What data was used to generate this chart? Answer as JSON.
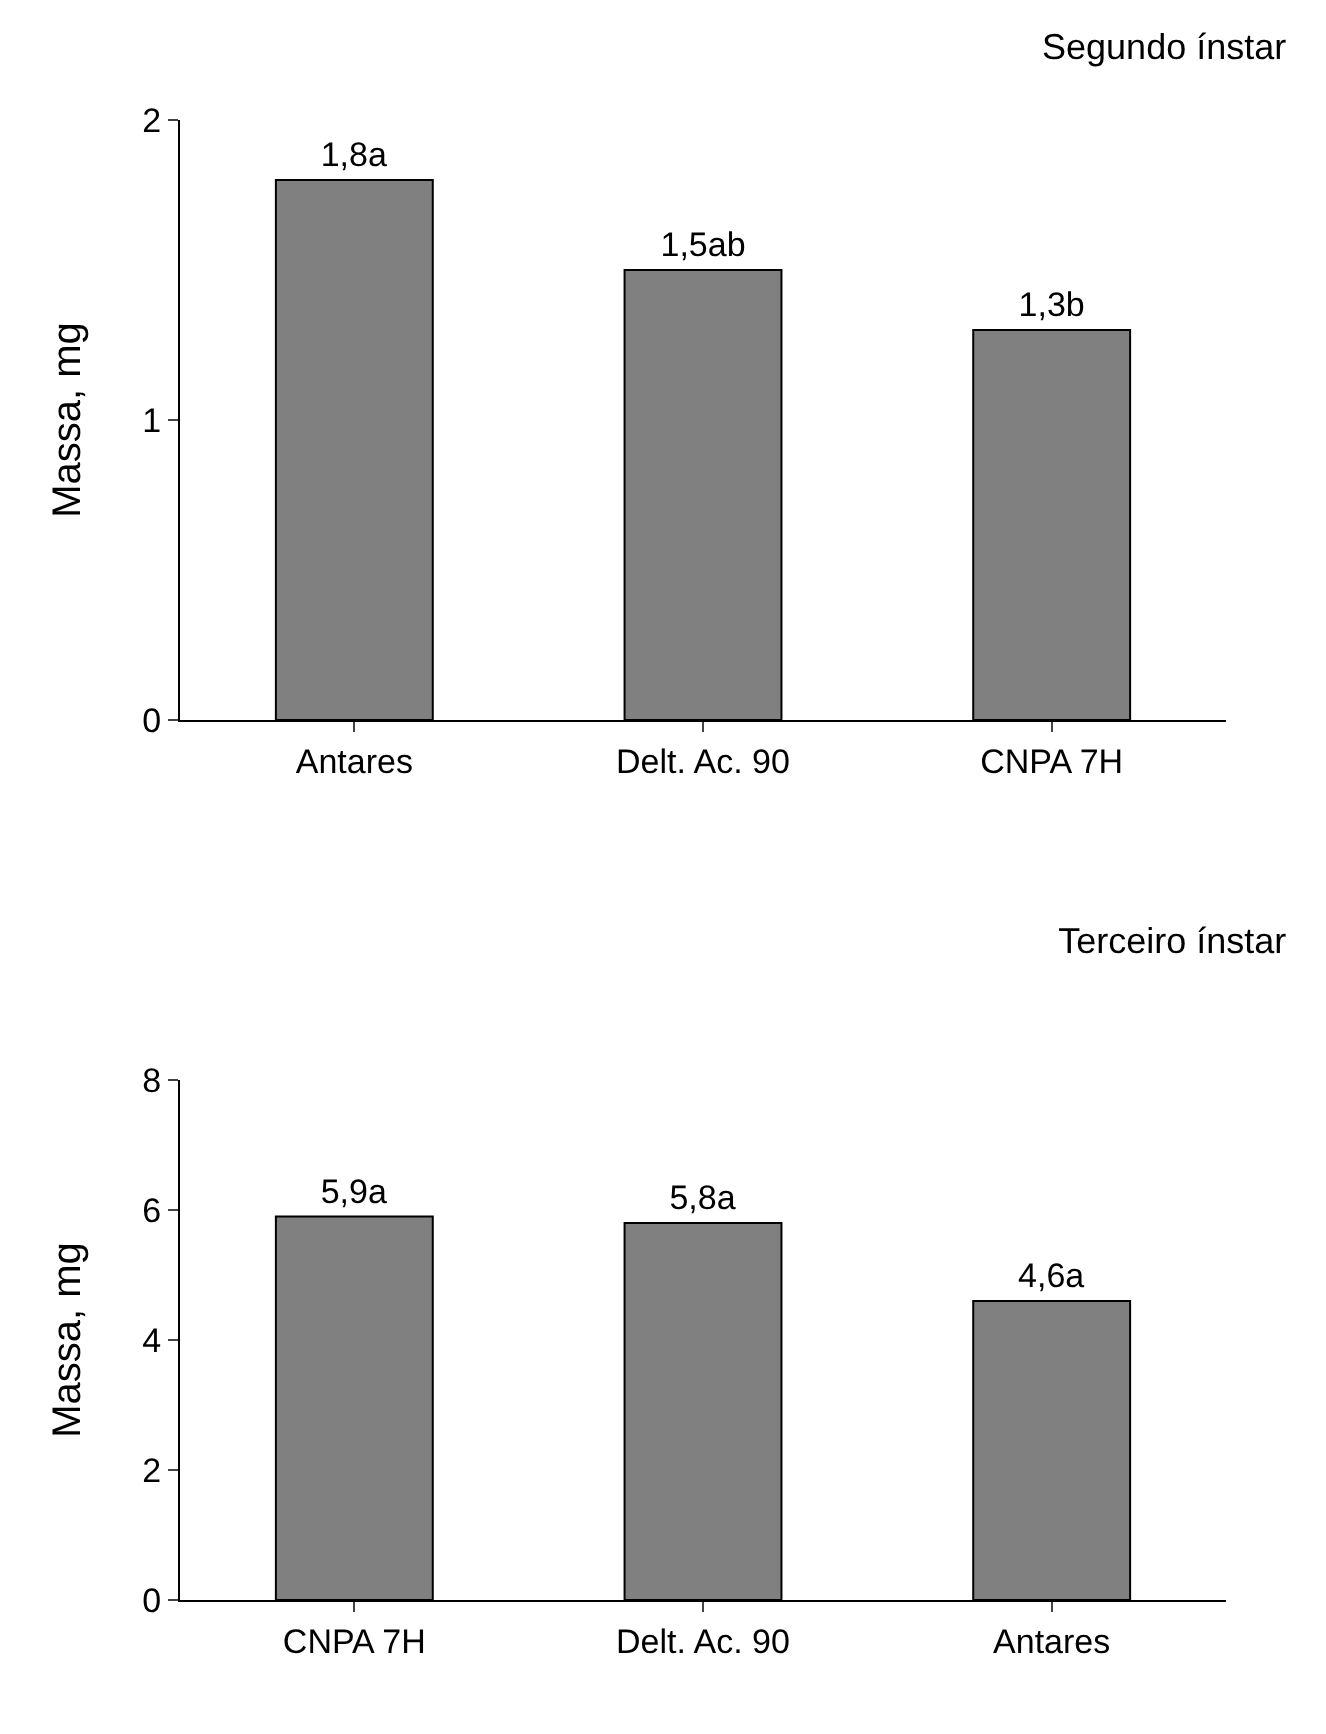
{
  "chart_data": [
    {
      "type": "bar",
      "title": "Segundo ínstar",
      "ylabel": "Massa, mg",
      "categories": [
        "Antares",
        "Delt. Ac. 90",
        "CNPA 7H"
      ],
      "values": [
        1.8,
        1.5,
        1.3
      ],
      "value_labels": [
        "1,8a",
        "1,5ab",
        "1,3b"
      ],
      "color": "#808080",
      "ylim": [
        0,
        2
      ],
      "yticks": [
        0,
        1,
        2
      ]
    },
    {
      "type": "bar",
      "title": "Terceiro ínstar",
      "ylabel": "Massa, mg",
      "categories": [
        "CNPA 7H",
        "Delt. Ac. 90",
        "Antares"
      ],
      "values": [
        5.9,
        5.8,
        4.6
      ],
      "value_labels": [
        "5,9a",
        "5,8a",
        "4,6a"
      ],
      "color": "#808080",
      "ylim": [
        0,
        8
      ],
      "yticks": [
        0,
        2,
        4,
        6,
        8
      ]
    }
  ]
}
